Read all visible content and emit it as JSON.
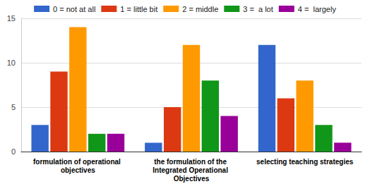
{
  "chart_data": {
    "type": "bar",
    "categories": [
      "formulation of operational objectives",
      "the formulation of the Integrated Operational Objectives",
      "selecting teaching strategies"
    ],
    "series": [
      {
        "name": "0 = not at all",
        "color": "#3366cc",
        "values": [
          3,
          1,
          12
        ]
      },
      {
        "name": "1 = little bit",
        "color": "#dc3912",
        "values": [
          9,
          5,
          6
        ]
      },
      {
        "name": "2 = middle",
        "color": "#ff9900",
        "values": [
          14,
          12,
          8
        ]
      },
      {
        "name": "3 =  a lot",
        "color": "#109618",
        "values": [
          2,
          8,
          3
        ]
      },
      {
        "name": "4 =  largely",
        "color": "#990099",
        "values": [
          2,
          4,
          1
        ]
      }
    ],
    "ylim": [
      0,
      15
    ],
    "yticks": [
      0,
      5,
      10,
      15
    ],
    "grid": true,
    "legend": "top"
  }
}
